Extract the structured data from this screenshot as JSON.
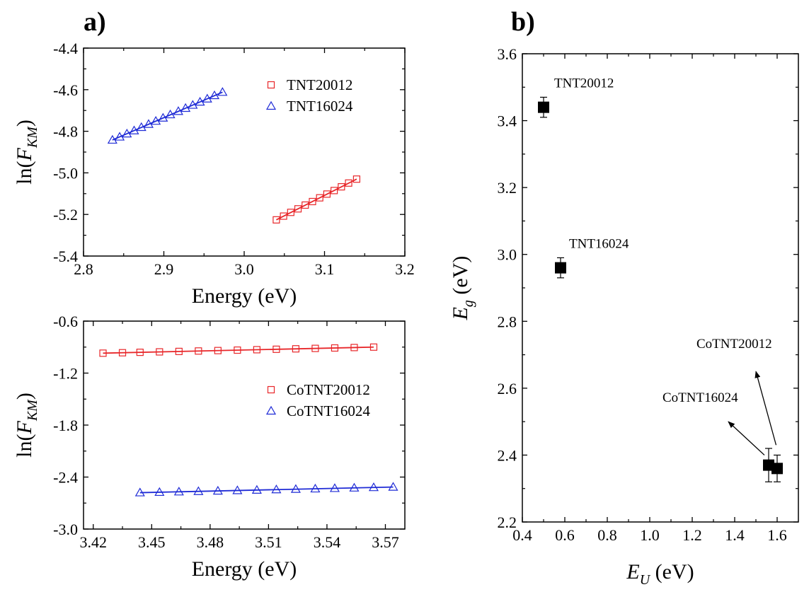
{
  "figure": {
    "panel_a_label": "a)",
    "panel_b_label": "b)"
  },
  "chart_data": [
    {
      "type": "scatter",
      "panel": "a) top",
      "xlabel": "Energy (eV)",
      "ylabel_main": "ln(F",
      "ylabel_sub": "KM",
      "ylabel_close": ")",
      "xlim": [
        2.8,
        3.2
      ],
      "ylim": [
        -5.4,
        -4.4
      ],
      "xticks": [
        2.8,
        2.9,
        3.0,
        3.1,
        3.2
      ],
      "xtick_labels": [
        "2.8",
        "2.9",
        "3.0",
        "3.1",
        "3.2"
      ],
      "yticks": [
        -5.4,
        -5.2,
        -5.0,
        -4.8,
        -4.6,
        -4.4
      ],
      "ytick_labels": [
        "-5.4",
        "-5.2",
        "-5.0",
        "-4.8",
        "-4.6",
        "-4.4"
      ],
      "legend_position": "top-right",
      "series": [
        {
          "name": "TNT20012",
          "marker": "square",
          "color": "#e8272a",
          "x": [
            3.04,
            3.049,
            3.058,
            3.067,
            3.076,
            3.085,
            3.094,
            3.103,
            3.112,
            3.121,
            3.13,
            3.14
          ],
          "y": [
            -5.226,
            -5.208,
            -5.19,
            -5.173,
            -5.155,
            -5.138,
            -5.12,
            -5.102,
            -5.085,
            -5.067,
            -5.049,
            -5.03
          ],
          "fit": [
            [
              3.04,
              -5.226
            ],
            [
              3.14,
              -5.03
            ]
          ]
        },
        {
          "name": "TNT16024",
          "marker": "triangle",
          "color": "#1f2bd6",
          "x": [
            2.836,
            2.845,
            2.854,
            2.863,
            2.872,
            2.881,
            2.89,
            2.899,
            2.908,
            2.918,
            2.927,
            2.936,
            2.945,
            2.954,
            2.963,
            2.973
          ],
          "y": [
            -4.842,
            -4.827,
            -4.812,
            -4.797,
            -4.781,
            -4.766,
            -4.751,
            -4.736,
            -4.72,
            -4.704,
            -4.689,
            -4.674,
            -4.659,
            -4.644,
            -4.628,
            -4.612
          ],
          "fit": [
            [
              2.836,
              -4.842
            ],
            [
              2.973,
              -4.612
            ]
          ]
        }
      ]
    },
    {
      "type": "scatter",
      "panel": "a) bottom",
      "xlabel": "Energy (eV)",
      "ylabel_main": "ln(F",
      "ylabel_sub": "KM",
      "ylabel_close": ")",
      "xlim": [
        3.415,
        3.58
      ],
      "ylim": [
        -3.0,
        -0.6
      ],
      "xticks": [
        3.42,
        3.45,
        3.48,
        3.51,
        3.54,
        3.57
      ],
      "xtick_labels": [
        "3.42",
        "3.45",
        "3.48",
        "3.51",
        "3.54",
        "3.57"
      ],
      "yticks": [
        -3.0,
        -2.4,
        -1.8,
        -1.2,
        -0.6
      ],
      "ytick_labels": [
        "-3.0",
        "-2.4",
        "-1.8",
        "-1.2",
        "-0.6"
      ],
      "legend_position": "middle-right",
      "series": [
        {
          "name": "CoTNT20012",
          "marker": "square",
          "color": "#e8272a",
          "x": [
            3.425,
            3.435,
            3.444,
            3.454,
            3.464,
            3.474,
            3.484,
            3.494,
            3.504,
            3.514,
            3.524,
            3.534,
            3.544,
            3.554,
            3.564
          ],
          "y": [
            -0.97,
            -0.965,
            -0.96,
            -0.955,
            -0.95,
            -0.945,
            -0.94,
            -0.935,
            -0.93,
            -0.925,
            -0.92,
            -0.915,
            -0.91,
            -0.905,
            -0.9
          ],
          "fit": [
            [
              3.425,
              -0.97
            ],
            [
              3.564,
              -0.9
            ]
          ]
        },
        {
          "name": "CoTNT16024",
          "marker": "triangle",
          "color": "#1f2bd6",
          "x": [
            3.444,
            3.454,
            3.464,
            3.474,
            3.484,
            3.494,
            3.504,
            3.514,
            3.524,
            3.534,
            3.544,
            3.554,
            3.564,
            3.574
          ],
          "y": [
            -2.58,
            -2.575,
            -2.57,
            -2.565,
            -2.56,
            -2.555,
            -2.55,
            -2.545,
            -2.54,
            -2.535,
            -2.53,
            -2.525,
            -2.52,
            -2.515
          ],
          "fit": [
            [
              3.444,
              -2.58
            ],
            [
              3.574,
              -2.515
            ]
          ]
        }
      ]
    },
    {
      "type": "scatter",
      "panel": "b)",
      "xlabel_main": "E",
      "xlabel_sub": "U",
      "xlabel_rest": " (eV)",
      "ylabel_main": "E",
      "ylabel_sub": "g",
      "ylabel_rest": " (eV)",
      "xlim": [
        0.4,
        1.7
      ],
      "ylim": [
        2.2,
        3.6
      ],
      "xticks": [
        0.4,
        0.6,
        0.8,
        1.0,
        1.2,
        1.4,
        1.6
      ],
      "xtick_labels": [
        "0.4",
        "0.6",
        "0.8",
        "1.0",
        "1.2",
        "1.4",
        "1.6"
      ],
      "yticks": [
        2.2,
        2.4,
        2.6,
        2.8,
        3.0,
        3.2,
        3.4,
        3.6
      ],
      "ytick_labels": [
        "2.2",
        "2.4",
        "2.6",
        "2.8",
        "3.0",
        "3.2",
        "3.4",
        "3.6"
      ],
      "points": [
        {
          "x": 0.5,
          "y": 3.44,
          "err": 0.03
        },
        {
          "x": 0.58,
          "y": 2.96,
          "err": 0.03
        },
        {
          "x": 1.56,
          "y": 2.37,
          "err": 0.05
        },
        {
          "x": 1.6,
          "y": 2.36,
          "err": 0.04
        }
      ],
      "annotations": [
        {
          "text": "TNT20012",
          "x": 0.55,
          "y": 3.5
        },
        {
          "text": "TNT16024",
          "x": 0.62,
          "y": 3.02
        },
        {
          "text": "CoTNT20012",
          "x": 1.22,
          "y": 2.72
        },
        {
          "text": "CoTNT16024",
          "x": 1.06,
          "y": 2.56
        }
      ],
      "arrows": [
        {
          "from": [
            1.595,
            2.43
          ],
          "to": [
            1.5,
            2.65
          ]
        },
        {
          "from": [
            1.54,
            2.4
          ],
          "to": [
            1.37,
            2.5
          ]
        }
      ]
    }
  ]
}
